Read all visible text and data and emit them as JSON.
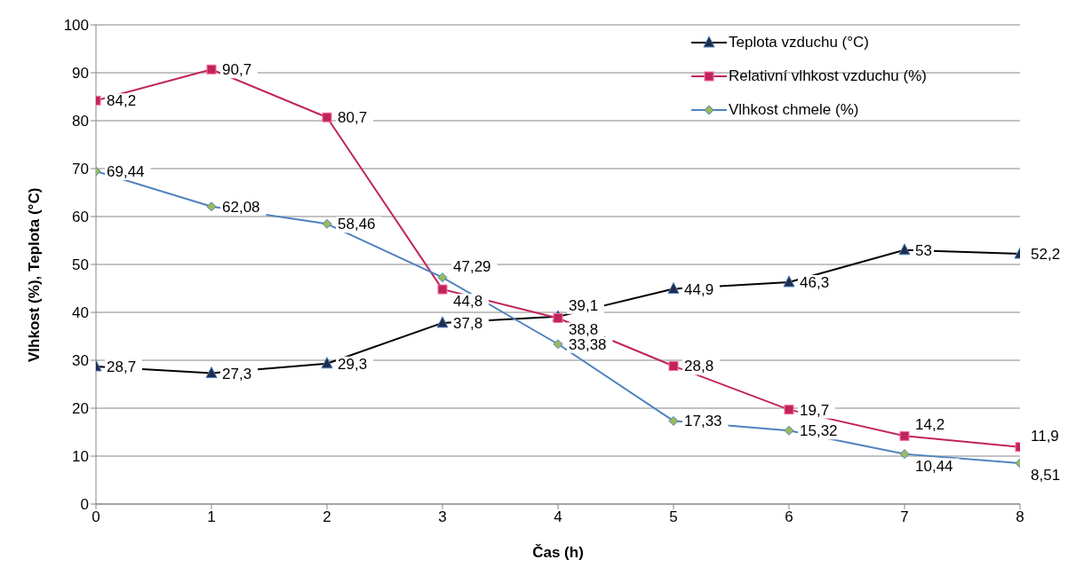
{
  "chart_data": {
    "type": "line",
    "xlabel": "Čas (h)",
    "ylabel": "Vlhkost (%), Teplota (°C)",
    "x": [
      0,
      1,
      2,
      3,
      4,
      5,
      6,
      7,
      8
    ],
    "series": [
      {
        "name": "Teplota vzduchu (°C)",
        "color": "#000000",
        "marker": "triangle",
        "values": [
          28.7,
          27.3,
          29.3,
          37.8,
          39.1,
          44.9,
          46.3,
          53,
          52.2
        ],
        "value_labels": [
          "28,7",
          "27,3",
          "29,3",
          "37,8",
          "39,1",
          "44,9",
          "46,3",
          "53",
          "52,2"
        ]
      },
      {
        "name": "Relativní vlhkost vzduchu (%)",
        "color": "#c0245c",
        "marker": "square",
        "values": [
          84.2,
          90.7,
          80.7,
          44.8,
          38.8,
          28.8,
          19.7,
          14.2,
          11.9
        ],
        "value_labels": [
          "84,2",
          "90,7",
          "80,7",
          "44,8",
          "38,8",
          "28,8",
          "19,7",
          "14,2",
          "11,9"
        ]
      },
      {
        "name": "Vlhkost chmele (%)",
        "color": "#4f81bd",
        "marker": "diamond",
        "values": [
          69.44,
          62.08,
          58.46,
          47.29,
          33.38,
          17.33,
          15.32,
          10.44,
          8.51
        ],
        "value_labels": [
          "69,44",
          "62,08",
          "58,46",
          "47,29",
          "33,38",
          "17,33",
          "15,32",
          "10,44",
          "8,51"
        ]
      }
    ],
    "xlim": [
      0,
      8
    ],
    "xticks": [
      0,
      1,
      2,
      3,
      4,
      5,
      6,
      7,
      8
    ],
    "ylim": [
      0,
      100
    ],
    "yticks": [
      0,
      10,
      20,
      30,
      40,
      50,
      60,
      70,
      80,
      90,
      100
    ],
    "grid": "y",
    "legend": "top right",
    "line_style": "solid"
  }
}
